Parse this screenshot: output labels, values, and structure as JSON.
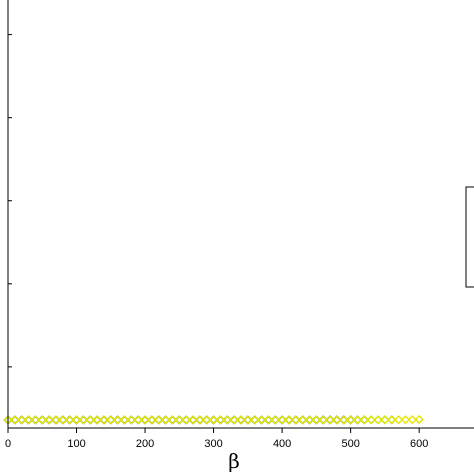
{
  "chart_data": {
    "type": "scatter",
    "title": "",
    "xlabel": "β",
    "ylabel": "",
    "xlim": [
      0,
      680
    ],
    "ylim": [
      -0.35,
      18.2
    ],
    "x_ticks": [
      0,
      100,
      200,
      300,
      400,
      500,
      600
    ],
    "marker": "diamond-open",
    "grid": false,
    "series": [
      {
        "color": "#e01010",
        "x_start": 0,
        "x_step": 10,
        "x_end": 500,
        "a": 2.48e-09,
        "b": 0.028
      },
      {
        "color": "#1a1ad8",
        "x_start": 0,
        "x_step": 10,
        "x_end": 520,
        "a": 1.76e-09,
        "b": 0.0282
      },
      {
        "color": "#22d21a",
        "x_start": 0,
        "x_step": 10,
        "x_end": 560,
        "a": 7.46e-10,
        "b": 0.0286
      },
      {
        "color": "#e6e600",
        "x_start": 0,
        "x_step": 10,
        "x_end": 600,
        "a": 1.33e-09,
        "b": 0.0274
      }
    ]
  }
}
